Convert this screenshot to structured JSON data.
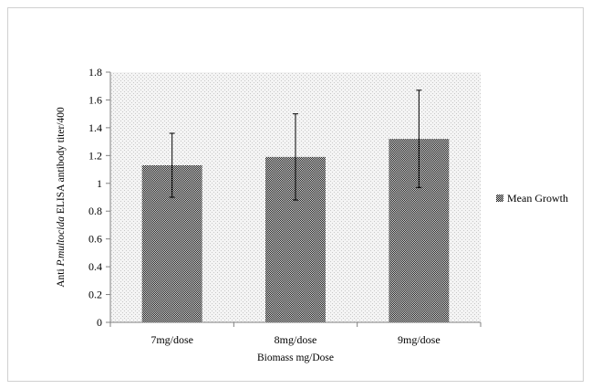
{
  "chart_data": {
    "type": "bar",
    "title": "",
    "categories": [
      "7mg/dose",
      "8mg/dose",
      "9mg/dose"
    ],
    "series": [
      {
        "name": "Mean Growth",
        "values": [
          1.13,
          1.19,
          1.32
        ],
        "error_low": [
          0.9,
          0.88,
          0.97
        ],
        "error_high": [
          1.36,
          1.5,
          1.67
        ]
      }
    ],
    "xlabel": "Biomass mg/Dose",
    "ylabel_prefix": "Anti ",
    "ylabel_italic": "P.multocida",
    "ylabel_suffix": " ELISA antibody titer/400",
    "ylim": [
      0,
      1.8
    ],
    "ytick_step": 0.2,
    "yticks": [
      "0",
      "0.2",
      "0.4",
      "0.6",
      "0.8",
      "1",
      "1.2",
      "1.4",
      "1.6",
      "1.8"
    ],
    "grid": false,
    "legend_position": "right",
    "colors": {
      "plot_background": "#eeeeee",
      "bar_fill": "#333333",
      "axis": "#808080",
      "error_bar": "#000000"
    }
  }
}
